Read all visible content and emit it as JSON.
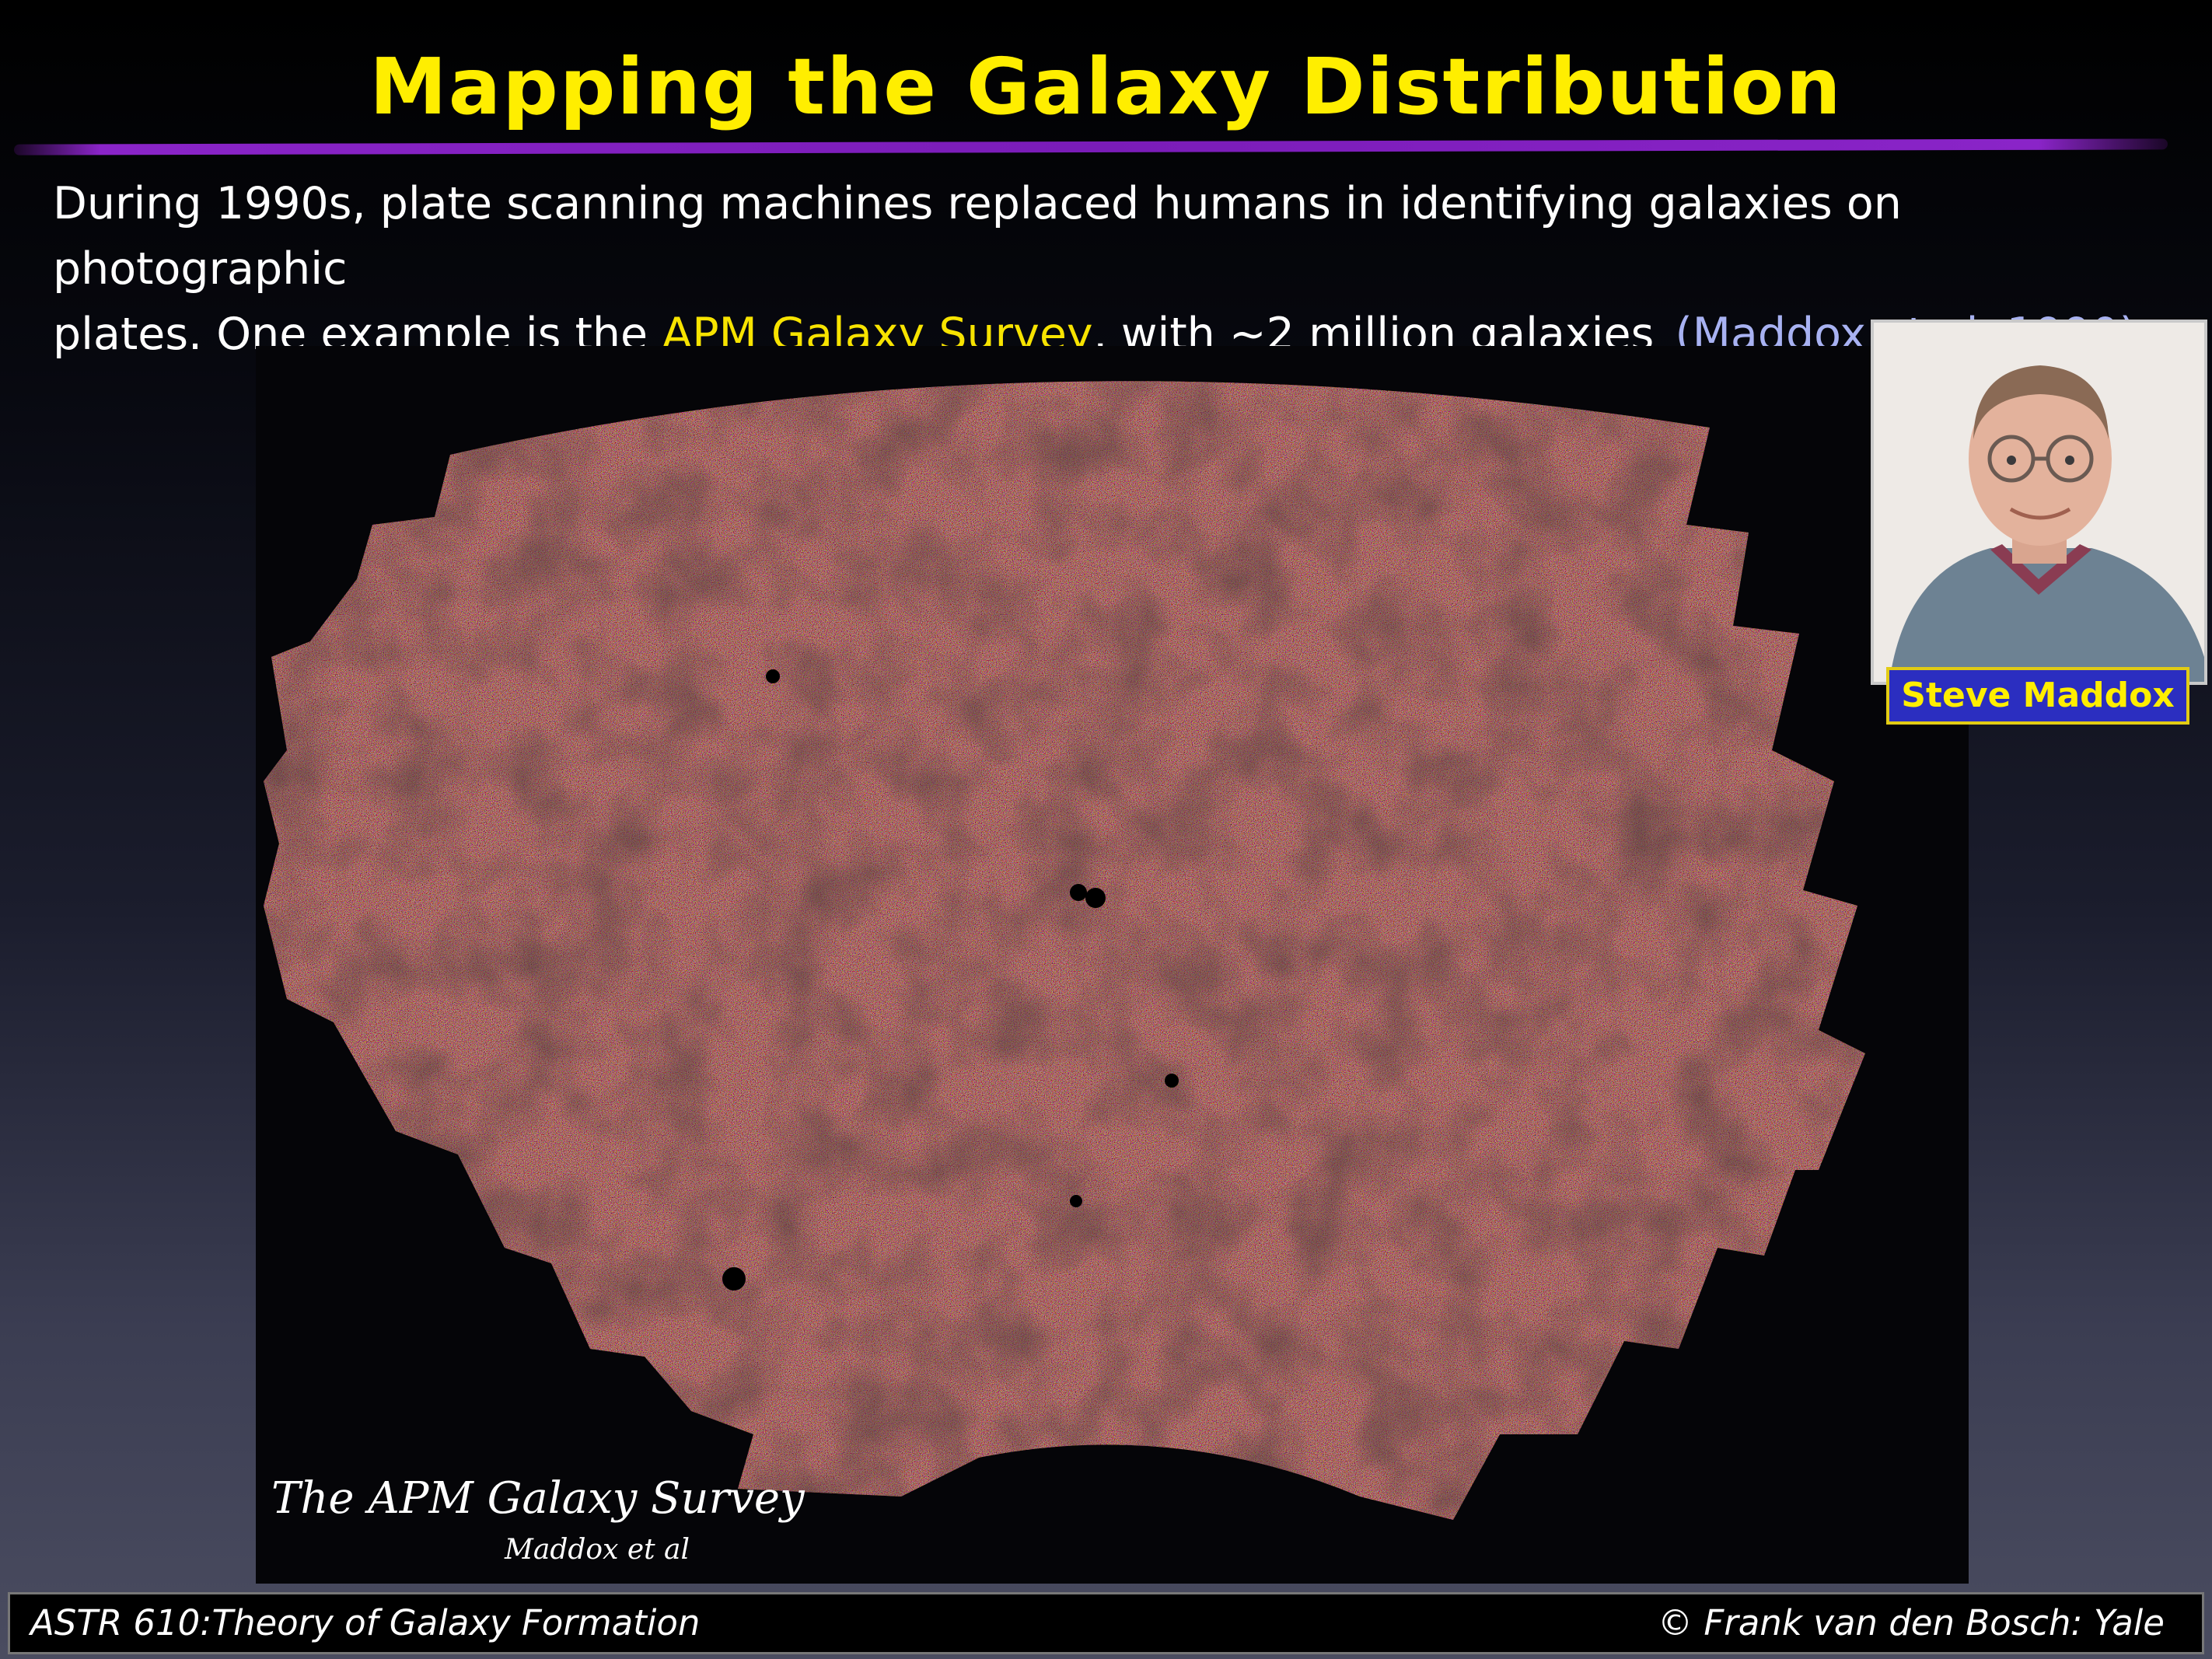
{
  "slide": {
    "title": "Mapping the Galaxy Distribution",
    "intro_line1": "During 1990s, plate scanning machines replaced humans in identifying galaxies on photographic",
    "intro_line2_start": "plates. One example is the ",
    "intro_highlight": "APM Galaxy Survey",
    "intro_line2_end": ", with ~2 million galaxies",
    "citation": "(Maddox et al. 1990)"
  },
  "survey_image": {
    "caption_title": "The APM Galaxy Survey",
    "caption_credit": "Maddox et al"
  },
  "portrait": {
    "name": "Steve Maddox"
  },
  "footer": {
    "course": "ASTR 610:Theory of Galaxy Formation",
    "copyright": "© Frank van den Bosch: Yale"
  },
  "colors": {
    "title": "#ffee00",
    "accent_rule": "#7a1cb8",
    "highlight": "#f7e300",
    "citation": "#a8b2f2",
    "name_box_bg": "#2b2ec0",
    "name_box_border": "#e2cc14"
  }
}
